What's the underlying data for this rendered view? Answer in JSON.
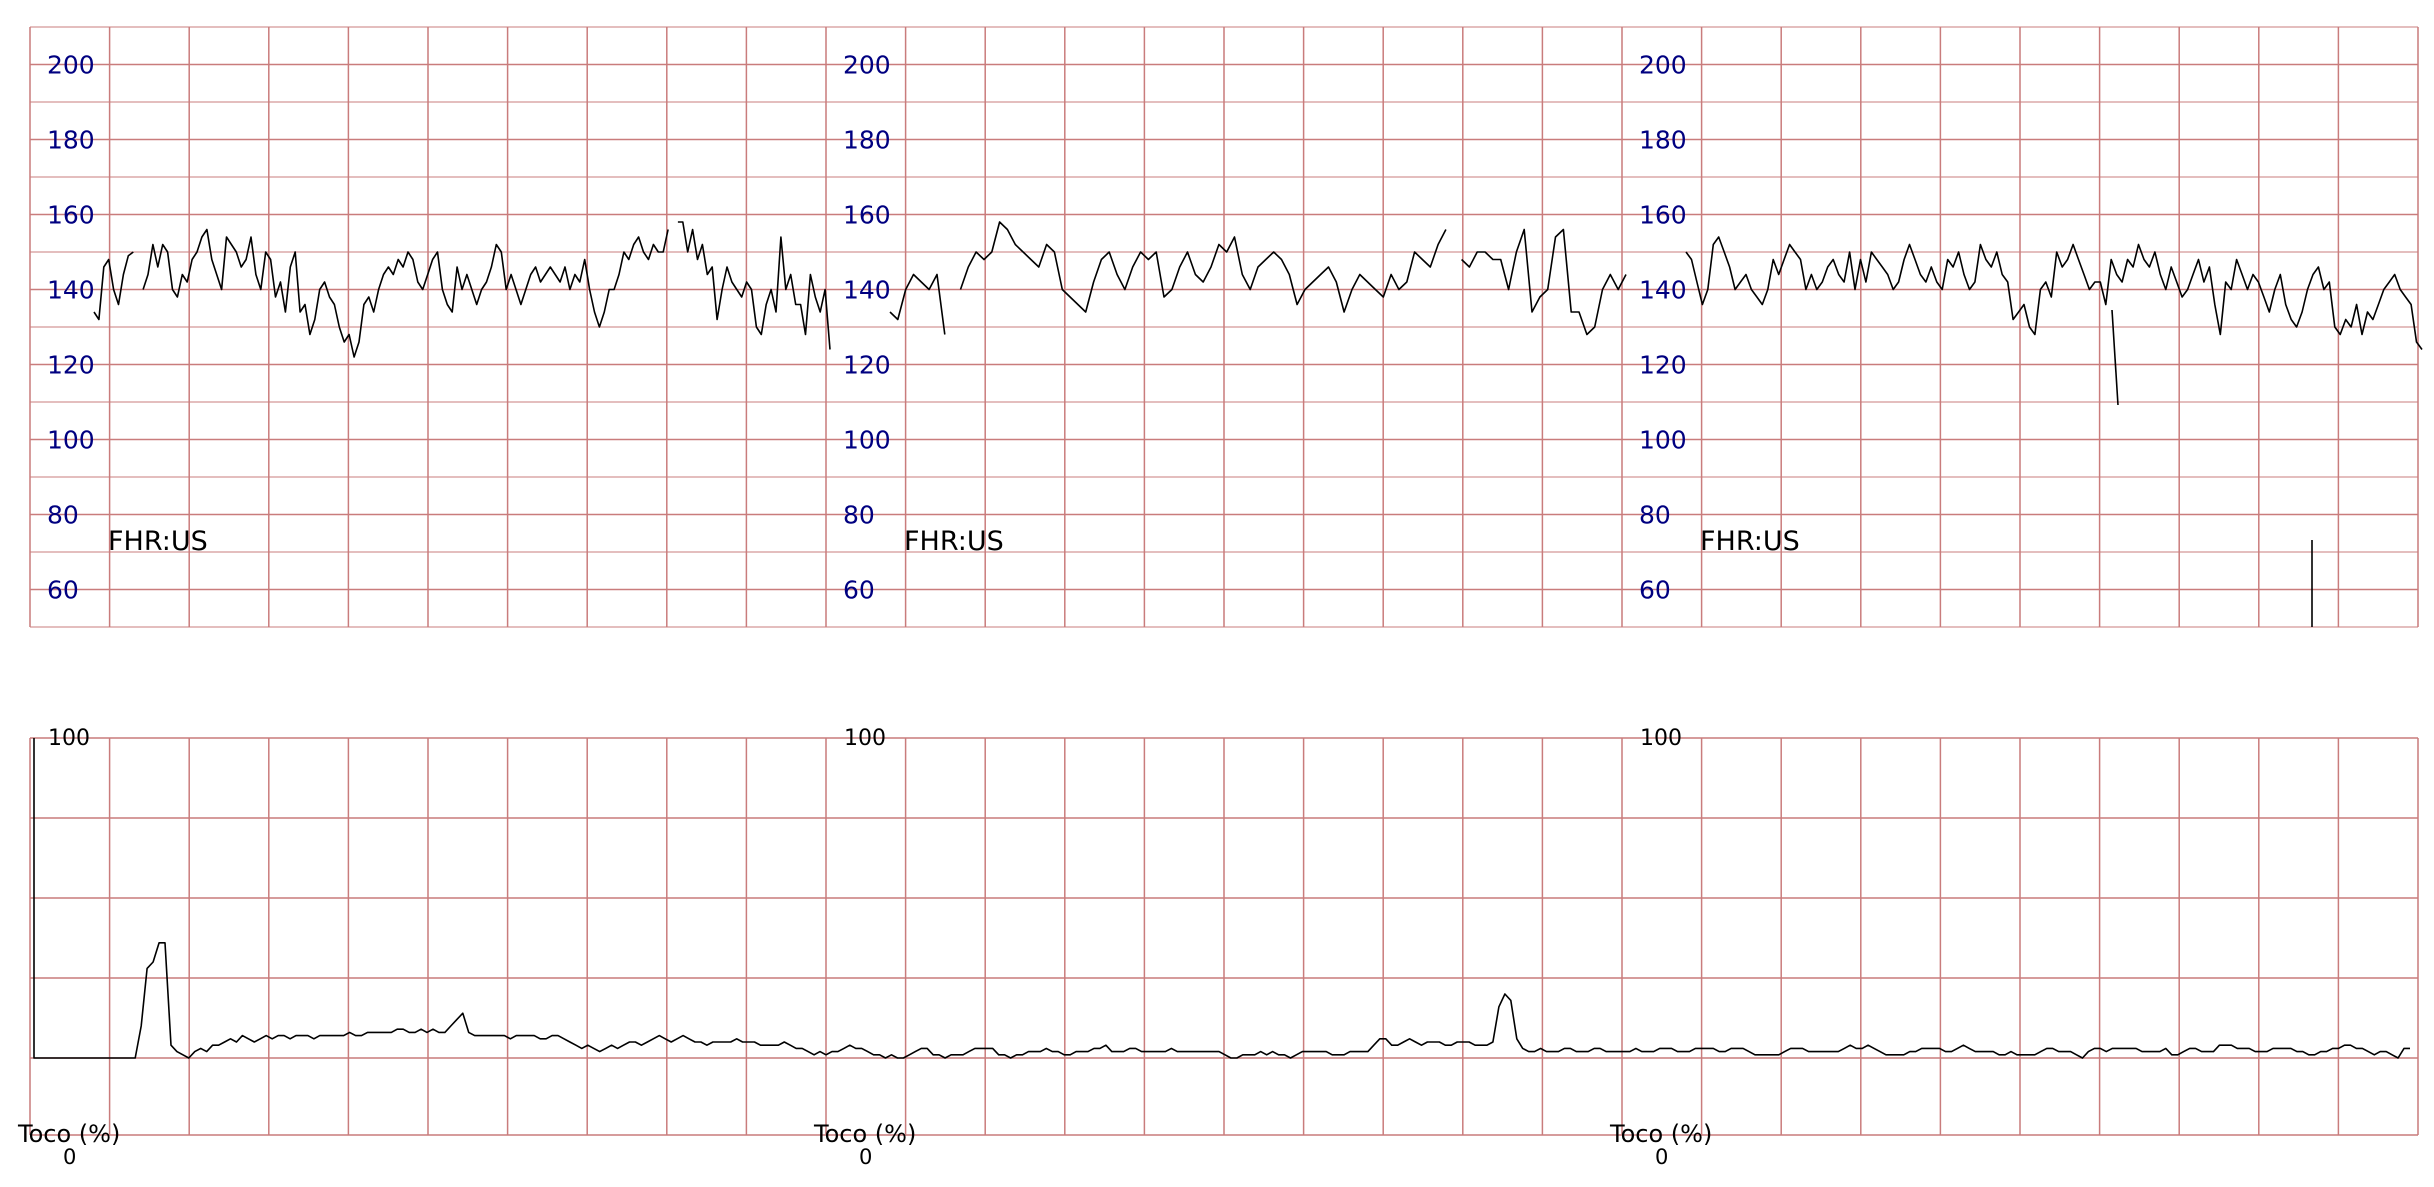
{
  "chart_data": {
    "type": "line",
    "title": "",
    "fhr": {
      "label": "FHR:US",
      "yticks": [
        200,
        180,
        160,
        140,
        120,
        100,
        80,
        60
      ],
      "ylim": [
        50,
        210
      ],
      "x_range_min": [
        0,
        30
      ],
      "grid": "minor 10 bpm lines, major 20 bpm lines, vertical line every 1 min",
      "series": [
        {
          "values": [
            134,
            132,
            146,
            148,
            140,
            136,
            144,
            149,
            150,
            null,
            140,
            144,
            152,
            146,
            152,
            150,
            140,
            138,
            144,
            142,
            148,
            150,
            154,
            156,
            148,
            144,
            140,
            154,
            152,
            150,
            146,
            148,
            154,
            144,
            140,
            150,
            148,
            138,
            142,
            134,
            146,
            150,
            134,
            136,
            128,
            132,
            140,
            142,
            138,
            136,
            130,
            126,
            128,
            122,
            126,
            136,
            138,
            134,
            140,
            144,
            146,
            144,
            148,
            146,
            150,
            148,
            142,
            140,
            144,
            148,
            150,
            140,
            136,
            134,
            146,
            140,
            144,
            140,
            136,
            140,
            142,
            146,
            152,
            150,
            140,
            144,
            140,
            136,
            140,
            144,
            146,
            142,
            144,
            146,
            144,
            142,
            146,
            140,
            144,
            142,
            148,
            140,
            134,
            130,
            134,
            140,
            140,
            144,
            150,
            148,
            152,
            154,
            150,
            148,
            152,
            150,
            150,
            156,
            null,
            158,
            158,
            150,
            156,
            148,
            152,
            144,
            146,
            132,
            140,
            146,
            142,
            140,
            138,
            142,
            140,
            130,
            128,
            136,
            140,
            134,
            154,
            140,
            144,
            136,
            136,
            128,
            144,
            138,
            134,
            140,
            124
          ],
          "x_end_min": 10
        },
        {
          "values": [
            134,
            132,
            140,
            144,
            142,
            140,
            144,
            128,
            null,
            140,
            146,
            150,
            148,
            150,
            158,
            156,
            152,
            150,
            148,
            146,
            152,
            150,
            140,
            138,
            136,
            134,
            142,
            148,
            150,
            144,
            140,
            146,
            150,
            148,
            150,
            138,
            140,
            146,
            150,
            144,
            142,
            146,
            152,
            150,
            154,
            144,
            140,
            146,
            148,
            150,
            148,
            144,
            136,
            140,
            142,
            144,
            146,
            142,
            134,
            140,
            144,
            142,
            140,
            138,
            144,
            140,
            142,
            150,
            148,
            146,
            152,
            156,
            null,
            148,
            146,
            150,
            150,
            148,
            148,
            140,
            150,
            156,
            134,
            138,
            140,
            154,
            156,
            134,
            134,
            128,
            130,
            140,
            144,
            140,
            144
          ],
          "x_end_min": 20
        },
        {
          "values": [
            150,
            148,
            142,
            136,
            140,
            152,
            154,
            150,
            146,
            140,
            142,
            144,
            140,
            138,
            136,
            140,
            148,
            144,
            148,
            152,
            150,
            148,
            140,
            144,
            140,
            142,
            146,
            148,
            144,
            142,
            150,
            140,
            148,
            142,
            150,
            148,
            146,
            144,
            140,
            142,
            148,
            152,
            148,
            144,
            142,
            146,
            142,
            140,
            148,
            146,
            150,
            144,
            140,
            142,
            152,
            148,
            146,
            150,
            144,
            142,
            132,
            134,
            136,
            130,
            128,
            140,
            142,
            138,
            150,
            146,
            148,
            152,
            148,
            144,
            140,
            142,
            142,
            136,
            148,
            144,
            142,
            148,
            146,
            152,
            148,
            146,
            150,
            144,
            140,
            146,
            142,
            138,
            140,
            144,
            148,
            142,
            146,
            136,
            128,
            142,
            140,
            148,
            144,
            140,
            144,
            142,
            138,
            134,
            140,
            144,
            136,
            132,
            130,
            134,
            140,
            144,
            146,
            140,
            142,
            130,
            128,
            132,
            130,
            136,
            128,
            134,
            132,
            136,
            140,
            142,
            144,
            140,
            138,
            136,
            126,
            124
          ],
          "x_end_min": 30
        }
      ]
    },
    "toco": {
      "label": "Toco (%)",
      "ytop": "100",
      "ybottom": "0",
      "ylim": [
        0,
        100
      ],
      "series": [
        0,
        0,
        0,
        0,
        0,
        0,
        0,
        0,
        0,
        0,
        0,
        0,
        0,
        0,
        0,
        0,
        0,
        0,
        10,
        28,
        30,
        36,
        36,
        4,
        2,
        1,
        0,
        2,
        3,
        2,
        4,
        4,
        5,
        6,
        5,
        7,
        6,
        5,
        6,
        7,
        6,
        7,
        7,
        6,
        7,
        7,
        7,
        6,
        7,
        7,
        7,
        7,
        7,
        8,
        7,
        7,
        8,
        8,
        8,
        8,
        8,
        9,
        9,
        8,
        8,
        9,
        8,
        9,
        8,
        8,
        10,
        12,
        14,
        8,
        7,
        7,
        7,
        7,
        7,
        7,
        6,
        7,
        7,
        7,
        7,
        6,
        6,
        7,
        7,
        6,
        5,
        4,
        3,
        4,
        3,
        2,
        3,
        4,
        3,
        4,
        5,
        5,
        4,
        5,
        6,
        7,
        6,
        5,
        6,
        7,
        6,
        5,
        5,
        4,
        5,
        5,
        5,
        5,
        6,
        5,
        5,
        5,
        4,
        4,
        4,
        4,
        5,
        4,
        3,
        3,
        2,
        1,
        2,
        1,
        2,
        2,
        3,
        4,
        3,
        3,
        2,
        1,
        1,
        0,
        1,
        0,
        0,
        1,
        2,
        3,
        3,
        1,
        1,
        0,
        1,
        1,
        1,
        2,
        3,
        3,
        3,
        3,
        1,
        1,
        0,
        1,
        1,
        2,
        2,
        2,
        3,
        2,
        2,
        1,
        1,
        2,
        2,
        2,
        3,
        3,
        4,
        2,
        2,
        2,
        3,
        3,
        2,
        2,
        2,
        2,
        2,
        3,
        2,
        2,
        2,
        2,
        2,
        2,
        2,
        2,
        1,
        0,
        0,
        1,
        1,
        1,
        2,
        1,
        2,
        1,
        1,
        0,
        1,
        2,
        2,
        2,
        2,
        2,
        1,
        1,
        1,
        2,
        2,
        2,
        2,
        4,
        6,
        6,
        4,
        4,
        5,
        6,
        5,
        4,
        5,
        5,
        5,
        4,
        4,
        5,
        5,
        5,
        4,
        4,
        4,
        5,
        16,
        20,
        18,
        6,
        3,
        2,
        2,
        3,
        2,
        2,
        2,
        3,
        3,
        2,
        2,
        2,
        3,
        3,
        2,
        2,
        2,
        2,
        2,
        3,
        2,
        2,
        2,
        3,
        3,
        3,
        2,
        2,
        2,
        3,
        3,
        3,
        3,
        2,
        2,
        3,
        3,
        3,
        2,
        1,
        1,
        1,
        1,
        1,
        2,
        3,
        3,
        3,
        2,
        2,
        2,
        2,
        2,
        2,
        3,
        4,
        3,
        3,
        4,
        3,
        2,
        1,
        1,
        1,
        1,
        2,
        2,
        3,
        3,
        3,
        3,
        2,
        2,
        3,
        4,
        3,
        2,
        2,
        2,
        2,
        1,
        1,
        2,
        1,
        1,
        1,
        1,
        2,
        3,
        3,
        2,
        2,
        2,
        1,
        0,
        2,
        3,
        3,
        2,
        3,
        3,
        3,
        3,
        3,
        2,
        2,
        2,
        2,
        3,
        1,
        1,
        2,
        3,
        3,
        2,
        2,
        2,
        4,
        4,
        4,
        3,
        3,
        3,
        2,
        2,
        2,
        3,
        3,
        3,
        3,
        2,
        2,
        1,
        1,
        2,
        2,
        3,
        3,
        4,
        4,
        3,
        3,
        2,
        1,
        2,
        2,
        1,
        0,
        3,
        3
      ]
    },
    "panels": [
      {
        "start_min": 0,
        "end_min": 10
      },
      {
        "start_min": 10,
        "end_min": 20
      },
      {
        "start_min": 20,
        "end_min": 30
      }
    ],
    "colors": {
      "grid": "#c97c7c",
      "trace": "#000000",
      "ytick": "#000080"
    }
  }
}
